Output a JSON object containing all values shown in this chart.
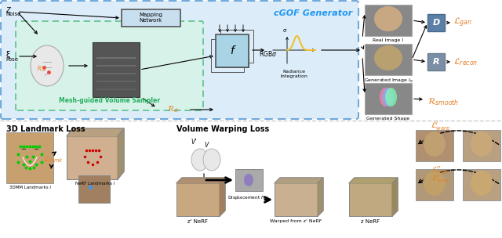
{
  "title": "",
  "bg_color": "#ffffff",
  "light_blue_bg": "#d6eaf8",
  "light_green_bg": "#d5f5e3",
  "cgof_label": "cGOF Generator",
  "cgof_label_color": "#2196F3",
  "mesh_label": "Mesh-guided Volume Sampler",
  "mesh_label_color": "#27ae60",
  "orange_color": "#e67e22",
  "dark_box_color": "#6d8fa8",
  "landmark_title": "3D Landmark Loss",
  "warping_title": "Volume Warping Loss",
  "f_box_color": "#a8d4e6",
  "mapping_box_color": "#a8d4e6"
}
